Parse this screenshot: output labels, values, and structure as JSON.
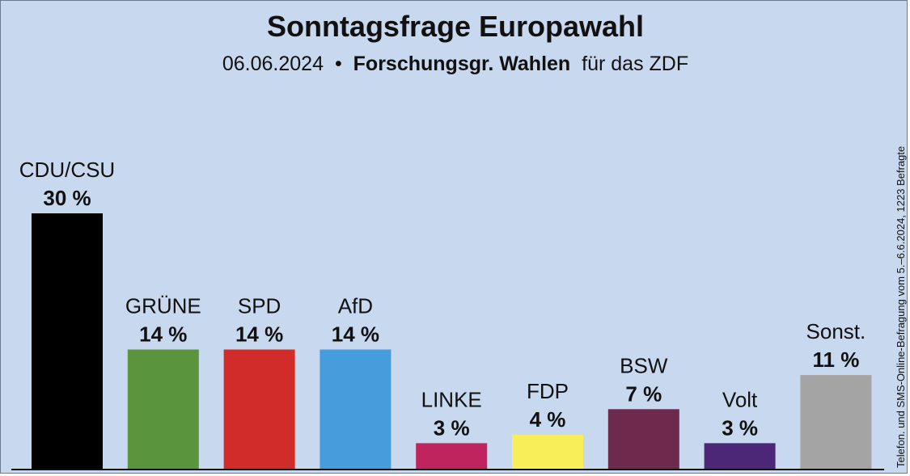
{
  "chart_data": {
    "type": "bar",
    "title": "Sonntagsfrage Europawahl",
    "subtitle": {
      "date": "06.06.2024",
      "separator": "•",
      "institute": "Forschungsgr. Wahlen",
      "suffix": "für das ZDF"
    },
    "source_note": "Telefon. und SMS-Online-Befragung vom 5.–6.6.2024, 1223 Befragte",
    "unit": "%",
    "ylim": [
      0,
      30
    ],
    "grid": false,
    "legend": "none",
    "categories": [
      "CDU/CSU",
      "GRÜNE",
      "SPD",
      "AfD",
      "LINKE",
      "FDP",
      "BSW",
      "Volt",
      "Sonst."
    ],
    "values": [
      30,
      14,
      14,
      14,
      3,
      4,
      7,
      3,
      11
    ],
    "value_labels": [
      "30 %",
      "14 %",
      "14 %",
      "14 %",
      "3 %",
      "4 %",
      "7 %",
      "3 %",
      "11 %"
    ],
    "colors": [
      "#000000",
      "#5a943c",
      "#d22c2a",
      "#479ddb",
      "#c0245e",
      "#f7ee5a",
      "#6e2a4d",
      "#4c2778",
      "#a4a4a4"
    ]
  }
}
